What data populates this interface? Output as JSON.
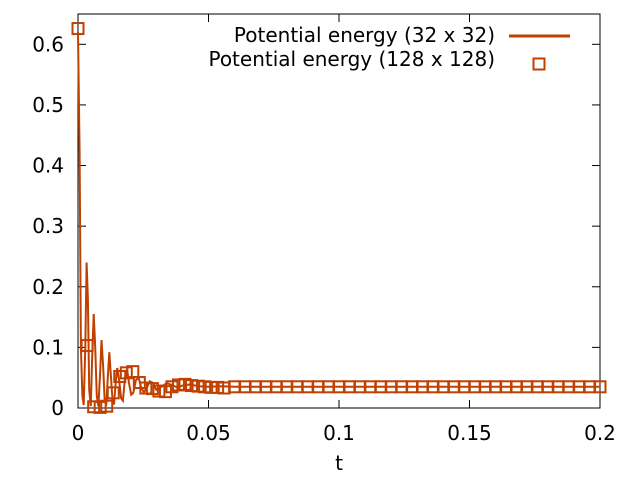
{
  "chart_data": {
    "type": "line",
    "title": "",
    "xlabel": "t",
    "ylabel": "",
    "xlim": [
      0,
      0.2
    ],
    "ylim": [
      0,
      0.65
    ],
    "xticks": [
      0,
      0.05,
      0.1,
      0.15,
      0.2
    ],
    "xtick_labels": [
      "0",
      "0.05",
      "0.1",
      "0.15",
      "0.2"
    ],
    "yticks": [
      0,
      0.1,
      0.2,
      0.3,
      0.4,
      0.5,
      0.6
    ],
    "ytick_labels": [
      "0",
      "0.1",
      "0.2",
      "0.3",
      "0.4",
      "0.5",
      "0.6"
    ],
    "grid": false,
    "legend_position": "top-right",
    "series": [
      {
        "name": "Potential energy (32 x 32)",
        "style": "line",
        "color": "#c04000",
        "x": [
          0,
          0.0006,
          0.0011,
          0.0017,
          0.0022,
          0.0028,
          0.0033,
          0.0038,
          0.0043,
          0.0049,
          0.0054,
          0.006,
          0.0066,
          0.0072,
          0.0078,
          0.0085,
          0.009,
          0.0096,
          0.0102,
          0.0108,
          0.0114,
          0.012,
          0.0125,
          0.0132,
          0.0138,
          0.0144,
          0.015,
          0.0158,
          0.0165,
          0.0172,
          0.018,
          0.0188,
          0.0195,
          0.0204,
          0.0212,
          0.0222,
          0.0232,
          0.0242,
          0.0252,
          0.0262,
          0.0275,
          0.0288,
          0.03,
          0.032,
          0.034,
          0.036,
          0.038,
          0.04,
          0.043,
          0.046,
          0.05,
          0.055,
          0.06,
          0.07,
          0.08,
          0.1,
          0.12,
          0.15,
          0.18,
          0.2
        ],
        "y": [
          0.62,
          0.42,
          0.1,
          0.02,
          0.005,
          0.1,
          0.24,
          0.18,
          0.03,
          0.003,
          0.08,
          0.155,
          0.1,
          0.02,
          0.003,
          0.06,
          0.112,
          0.07,
          0.015,
          0.004,
          0.05,
          0.092,
          0.06,
          0.014,
          0.006,
          0.04,
          0.066,
          0.045,
          0.016,
          0.012,
          0.05,
          0.064,
          0.042,
          0.022,
          0.025,
          0.046,
          0.05,
          0.034,
          0.026,
          0.032,
          0.044,
          0.041,
          0.03,
          0.035,
          0.041,
          0.038,
          0.034,
          0.037,
          0.039,
          0.036,
          0.035,
          0.036,
          0.035,
          0.035,
          0.035,
          0.035,
          0.035,
          0.035,
          0.035,
          0.035
        ]
      },
      {
        "name": "Potential energy (128 x 128)",
        "style": "squares",
        "color": "#c04000",
        "x": [
          0.0,
          0.0035,
          0.006,
          0.0085,
          0.011,
          0.0135,
          0.016,
          0.0185,
          0.021,
          0.0235,
          0.026,
          0.0285,
          0.031,
          0.0335,
          0.036,
          0.0385,
          0.041,
          0.0435,
          0.046,
          0.0485,
          0.051,
          0.0535,
          0.056,
          0.06,
          0.064,
          0.068,
          0.072,
          0.076,
          0.08,
          0.084,
          0.088,
          0.092,
          0.096,
          0.1,
          0.104,
          0.108,
          0.112,
          0.116,
          0.12,
          0.124,
          0.128,
          0.132,
          0.136,
          0.14,
          0.144,
          0.148,
          0.152,
          0.156,
          0.16,
          0.164,
          0.168,
          0.172,
          0.176,
          0.18,
          0.184,
          0.188,
          0.192,
          0.196,
          0.2
        ],
        "y": [
          0.626,
          0.103,
          0.002,
          0.001,
          0.003,
          0.025,
          0.052,
          0.058,
          0.06,
          0.042,
          0.033,
          0.032,
          0.028,
          0.027,
          0.035,
          0.038,
          0.039,
          0.037,
          0.036,
          0.035,
          0.034,
          0.034,
          0.033,
          0.035,
          0.035,
          0.035,
          0.035,
          0.035,
          0.035,
          0.035,
          0.035,
          0.035,
          0.035,
          0.035,
          0.035,
          0.035,
          0.035,
          0.035,
          0.035,
          0.035,
          0.035,
          0.035,
          0.035,
          0.035,
          0.035,
          0.035,
          0.035,
          0.035,
          0.035,
          0.035,
          0.035,
          0.035,
          0.035,
          0.035,
          0.035,
          0.035,
          0.035,
          0.035,
          0.035
        ]
      }
    ]
  }
}
